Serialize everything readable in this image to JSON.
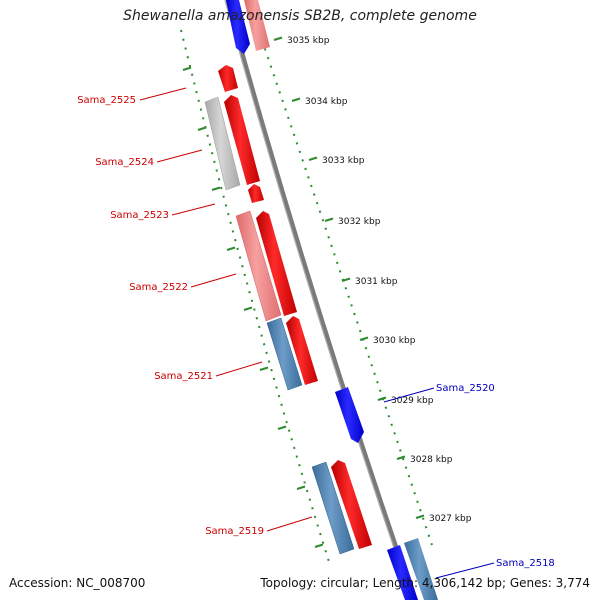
{
  "header": {
    "title": "Shewanella amazonensis SB2B, complete genome"
  },
  "footer": {
    "accession": "Accession: NC_008700",
    "summary": "Topology: circular; Length: 4,306,142 bp; Genes: 3,774"
  },
  "colors": {
    "backbone": "#808080",
    "tick": "#2e8b2e",
    "forward_cds": "#ee0000",
    "forward_light": "#f08a8a",
    "reverse_cds": "#1515ee",
    "grey_feature": "#bdbdbd",
    "steelblue_feature": "#4a7fb0",
    "label_red": "#cc0000",
    "label_blue": "#0000bb"
  },
  "ruler": {
    "unit": "kbp",
    "ticks": [
      {
        "label": "3035 kbp"
      },
      {
        "label": "3034 kbp"
      },
      {
        "label": "3033 kbp"
      },
      {
        "label": "3032 kbp"
      },
      {
        "label": "3031 kbp"
      },
      {
        "label": "3030 kbp"
      },
      {
        "label": "3029 kbp"
      },
      {
        "label": "3028 kbp"
      },
      {
        "label": "3027 kbp"
      }
    ]
  },
  "gene_labels": [
    {
      "text": "Sama_2525",
      "color": "label_red"
    },
    {
      "text": "Sama_2524",
      "color": "label_red"
    },
    {
      "text": "Sama_2523",
      "color": "label_red"
    },
    {
      "text": "Sama_2522",
      "color": "label_red"
    },
    {
      "text": "Sama_2521",
      "color": "label_red"
    },
    {
      "text": "Sama_2520",
      "color": "label_blue"
    },
    {
      "text": "Sama_2519",
      "color": "label_red"
    },
    {
      "text": "Sama_2518",
      "color": "label_blue"
    }
  ]
}
